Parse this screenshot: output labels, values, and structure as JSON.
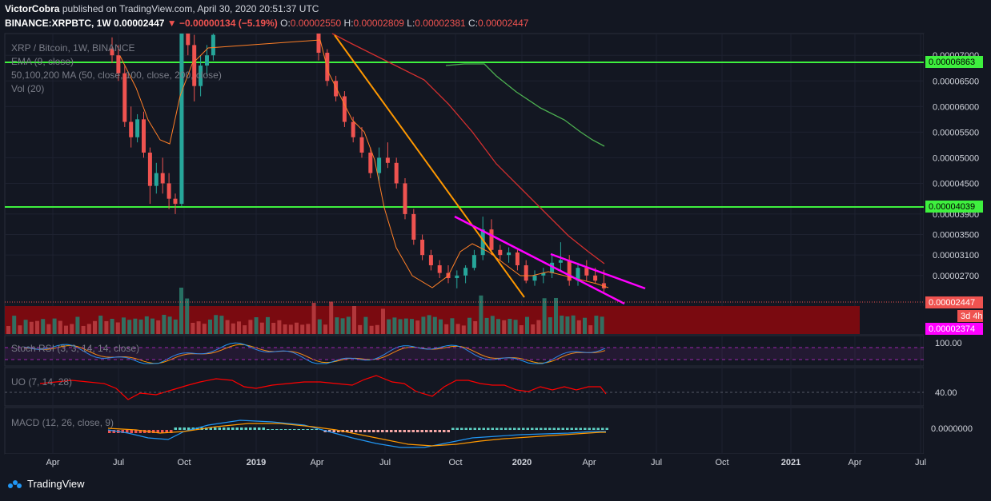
{
  "header": {
    "author": "VictorCobra",
    "published_text": "published on TradingView.com, April 30, 2020 20:51:37 UTC",
    "symbol": "BINANCE:XRPBTC, 1W",
    "price": "0.00002447",
    "change": "−0.00000134 (−5.19%)",
    "o_label": "O:",
    "o": "0.00002550",
    "h_label": "H:",
    "h": "0.00002809",
    "l_label": "L:",
    "l": "0.00002381",
    "c_label": "C:",
    "c": "0.00002447"
  },
  "legend": {
    "title": "XRP / Bitcoin, 1W, BINANCE",
    "ema": "EMA (9, close)",
    "ma": "50,100,200 MA (50, close, 100, close, 200, close)",
    "vol": "Vol (20)"
  },
  "indicators": {
    "stoch": "Stoch RSI (3, 3, 14, 14, close)",
    "stoch_level": "100.00",
    "uo": "UO (7, 14, 28)",
    "uo_level": "40.00",
    "macd": "MACD (12, 26, close, 9)",
    "macd_level": "0.0000000"
  },
  "badges": {
    "resistance_high": "0.00006863",
    "resistance_mid": "0.00004039",
    "last_price": "0.00002447",
    "countdown": "3d 4h",
    "support_low": "0.00002374"
  },
  "colors": {
    "background": "#131722",
    "up": "#26a69a",
    "down": "#ef5350",
    "horizontal_line": "#3ef03e",
    "trendline_orange": "#ff9800",
    "trendline_magenta": "#ff00ff",
    "ema": "#ff7f27",
    "ma50": "#d32f2f",
    "ma100": "#4caf50",
    "macd": "#2196f3",
    "signal": "#ff9800",
    "stoch_k": "#2196f3",
    "stoch_d": "#ff9800",
    "uo": "#ff0000"
  },
  "footer": {
    "brand": "TradingView"
  },
  "chart_data": {
    "type": "candlestick",
    "interval": "1W",
    "y_scale_ticks": [
      "0.00007000",
      "0.00006500",
      "0.00006000",
      "0.00005500",
      "0.00005000",
      "0.00004500",
      "0.00003900",
      "0.00003500",
      "0.00003100",
      "0.00002700"
    ],
    "x_tick_labels": [
      "Apr",
      "Jul",
      "Oct",
      "2019",
      "Apr",
      "Jul",
      "Oct",
      "2020",
      "Apr",
      "Jul",
      "Oct",
      "2021",
      "Apr",
      "Jul"
    ],
    "horizontal_levels": [
      6.863e-05,
      4.039e-05,
      2.374e-05
    ],
    "last_price": 2.447e-05,
    "candles": [
      [
        7.12e-05,
        7.35e-05,
        6.85e-05,
        7e-05
      ],
      [
        7e-05,
        7.2e-05,
        6.5e-05,
        6.65e-05
      ],
      [
        6.65e-05,
        6.8e-05,
        5.6e-05,
        5.7e-05
      ],
      [
        5.7e-05,
        6e-05,
        5.2e-05,
        5.4e-05
      ],
      [
        5.4e-05,
        5.85e-05,
        5.3e-05,
        5.75e-05
      ],
      [
        5.75e-05,
        5.9e-05,
        5e-05,
        5.1e-05
      ],
      [
        5.1e-05,
        5.2e-05,
        4.1e-05,
        4.45e-05
      ],
      [
        4.45e-05,
        4.9e-05,
        4.3e-05,
        4.7e-05
      ],
      [
        4.7e-05,
        5e-05,
        4.3e-05,
        4.5e-05
      ],
      [
        4.5e-05,
        4.7e-05,
        4e-05,
        4.2e-05
      ],
      [
        4.2e-05,
        4.3e-05,
        3.9e-05,
        4.1e-05
      ],
      [
        4.1e-05,
        8e-05,
        4.05e-05,
        7.6e-05
      ],
      [
        7.6e-05,
        8.5e-05,
        7e-05,
        7.2e-05
      ],
      [
        7.2e-05,
        7.4e-05,
        6.1e-05,
        6.4e-05
      ],
      [
        6.4e-05,
        7e-05,
        6.2e-05,
        6.8e-05
      ],
      [
        6.8e-05,
        7.2e-05,
        6.6e-05,
        7e-05
      ],
      [
        7e-05,
        7.6e-05,
        6.9e-05,
        7.4e-05
      ]
    ],
    "candles_2019_2020": [
      [
        7.45e-05,
        7.6e-05,
        6.9e-05,
        7.05e-05
      ],
      [
        7.05e-05,
        7.12e-05,
        6.4e-05,
        6.5e-05
      ],
      [
        6.5e-05,
        6.6e-05,
        6.1e-05,
        6.2e-05
      ],
      [
        6.2e-05,
        6.3e-05,
        5.6e-05,
        5.7e-05
      ],
      [
        5.7e-05,
        5.8e-05,
        5.3e-05,
        5.4e-05
      ],
      [
        5.4e-05,
        5.6e-05,
        5e-05,
        5.1e-05
      ],
      [
        5.1e-05,
        5.2e-05,
        4.6e-05,
        4.7e-05
      ],
      [
        4.7e-05,
        5.2e-05,
        4.5e-05,
        5e-05
      ],
      [
        5e-05,
        5.3e-05,
        4.8e-05,
        4.9e-05
      ],
      [
        4.9e-05,
        5e-05,
        4.4e-05,
        4.5e-05
      ],
      [
        4.5e-05,
        4.6e-05,
        3.8e-05,
        3.9e-05
      ],
      [
        3.9e-05,
        4e-05,
        3.3e-05,
        3.4e-05
      ],
      [
        3.4e-05,
        3.5e-05,
        3e-05,
        3.1e-05
      ],
      [
        3.1e-05,
        3.2e-05,
        2.8e-05,
        2.9e-05
      ],
      [
        2.9e-05,
        3e-05,
        2.65e-05,
        2.75e-05
      ],
      [
        2.75e-05,
        2.9e-05,
        2.55e-05,
        2.65e-05
      ],
      [
        2.65e-05,
        2.8e-05,
        2.45e-05,
        2.7e-05
      ],
      [
        2.7e-05,
        2.9e-05,
        2.55e-05,
        2.85e-05
      ],
      [
        2.85e-05,
        3.2e-05,
        2.8e-05,
        3.1e-05
      ],
      [
        3.1e-05,
        3.85e-05,
        3e-05,
        3.6e-05
      ],
      [
        3.6e-05,
        3.8e-05,
        3.1e-05,
        3.2e-05
      ],
      [
        3.2e-05,
        3.3e-05,
        3e-05,
        3.1e-05
      ],
      [
        3.1e-05,
        3.25e-05,
        2.95e-05,
        3.15e-05
      ],
      [
        3.15e-05,
        3.2e-05,
        2.8e-05,
        2.9e-05
      ],
      [
        2.9e-05,
        3e-05,
        2.55e-05,
        2.6e-05
      ],
      [
        2.6e-05,
        2.8e-05,
        2.5e-05,
        2.7e-05
      ],
      [
        2.7e-05,
        2.85e-05,
        2.55e-05,
        2.75e-05
      ],
      [
        2.75e-05,
        3.1e-05,
        2.65e-05,
        2.95e-05
      ],
      [
        2.95e-05,
        3.35e-05,
        2.8e-05,
        3e-05
      ],
      [
        3e-05,
        3.1e-05,
        2.5e-05,
        2.6e-05
      ],
      [
        2.6e-05,
        2.95e-05,
        2.5e-05,
        2.85e-05
      ],
      [
        2.85e-05,
        3e-05,
        2.6e-05,
        2.7e-05
      ],
      [
        2.7e-05,
        2.85e-05,
        2.55e-05,
        2.6e-05
      ],
      [
        2.55e-05,
        2.81e-05,
        2.38e-05,
        2.45e-05
      ]
    ]
  }
}
